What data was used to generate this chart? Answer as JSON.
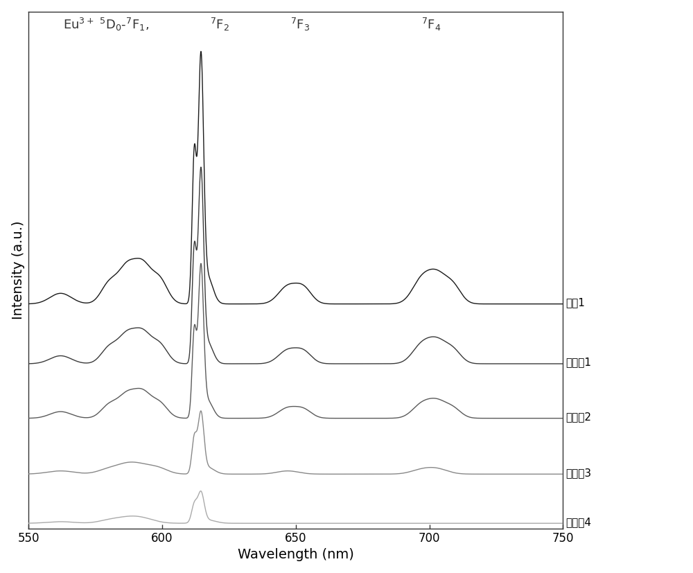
{
  "xlabel": "Wavelength (nm)",
  "ylabel": "Intensity (a.u.)",
  "xlim": [
    550,
    750
  ],
  "xticklabels": [
    "550",
    "600",
    "650",
    "700",
    "750"
  ],
  "xticks": [
    550,
    600,
    650,
    700,
    750
  ],
  "series_labels": [
    "对比1",
    "实施例1",
    "实施例2",
    "实施例3",
    "实施例4"
  ],
  "line_colors": [
    "#1a1a1a",
    "#3a3a3a",
    "#5a5a5a",
    "#888888",
    "#aaaaaa"
  ],
  "line_widths": [
    1.0,
    1.0,
    1.0,
    1.0,
    1.0
  ],
  "background_color": "#ffffff",
  "label_fontsize": 14,
  "annotation_fontsize": 13,
  "tick_fontsize": 12
}
